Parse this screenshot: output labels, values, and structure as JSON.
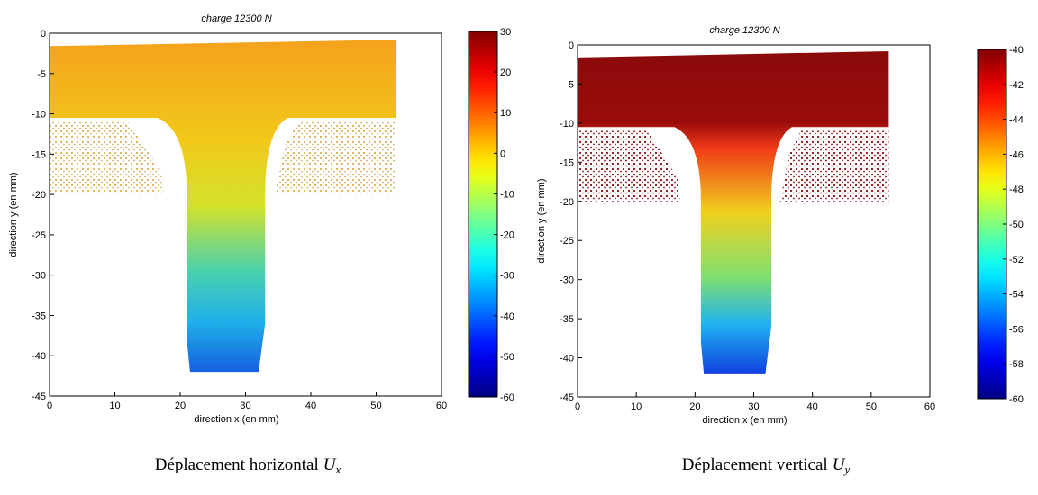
{
  "chart_data": [
    {
      "type": "heatmap",
      "title": "charge 12300 N",
      "xlabel": "direction x (en mm)",
      "ylabel": "direction y (en mm)",
      "xlim": [
        0,
        60
      ],
      "xticks": [
        0,
        10,
        20,
        30,
        40,
        50,
        60
      ],
      "ylim": [
        -45,
        0
      ],
      "yticks": [
        0,
        -5,
        -10,
        -15,
        -20,
        -25,
        -30,
        -35,
        -40,
        -45
      ],
      "colormap": "jet",
      "colorbar": {
        "lim": [
          -60,
          30
        ],
        "ticks": [
          30,
          20,
          10,
          0,
          -10,
          -20,
          -30,
          -40,
          -50,
          -60
        ]
      },
      "caption": "Déplacement horizontal",
      "caption_symbol": "U",
      "caption_subscript": "x"
    },
    {
      "type": "heatmap",
      "title": "charge 12300 N",
      "xlabel": "direction x (en mm)",
      "ylabel": "direction y (en mm)",
      "xlim": [
        0,
        60
      ],
      "xticks": [
        0,
        10,
        20,
        30,
        40,
        50,
        60
      ],
      "ylim": [
        -45,
        0
      ],
      "yticks": [
        0,
        -5,
        -10,
        -15,
        -20,
        -25,
        -30,
        -35,
        -40,
        -45
      ],
      "colormap": "jet",
      "colorbar": {
        "lim": [
          -60,
          -40
        ],
        "ticks": [
          -40,
          -42,
          -44,
          -46,
          -48,
          -50,
          -52,
          -54,
          -56,
          -58,
          -60
        ]
      },
      "caption": "Déplacement vertical",
      "caption_symbol": "U",
      "caption_subscript": "y"
    }
  ]
}
